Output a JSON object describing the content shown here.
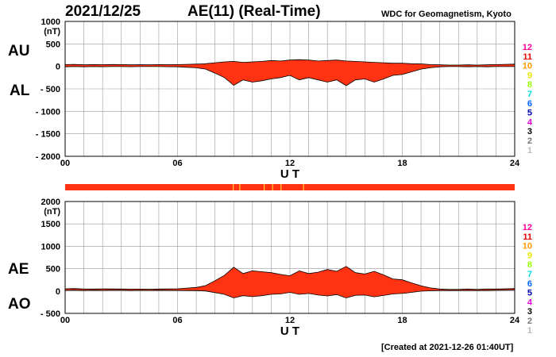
{
  "header": {
    "date": "2021/12/25",
    "title": "AE(11) (Real-Time)",
    "credit": "WDC for Geomagnetism, Kyoto"
  },
  "footer": {
    "created": "[Created at 2021-12-26 01:40UT]"
  },
  "legend": {
    "items": [
      {
        "label": "12",
        "color": "#ff0099"
      },
      {
        "label": "11",
        "color": "#e60000"
      },
      {
        "label": "10",
        "color": "#ff9900"
      },
      {
        "label": "9",
        "color": "#e6e600"
      },
      {
        "label": "8",
        "color": "#99ff00"
      },
      {
        "label": "7",
        "color": "#00dddd"
      },
      {
        "label": "6",
        "color": "#0066ff"
      },
      {
        "label": "5",
        "color": "#0000aa"
      },
      {
        "label": "4",
        "color": "#dd00dd"
      },
      {
        "label": "3",
        "color": "#000000"
      },
      {
        "label": "2",
        "color": "#777777"
      },
      {
        "label": "1",
        "color": "#bbbbbb"
      }
    ]
  },
  "colors": {
    "fill": "#ff3311",
    "outline": "#000000",
    "highlight": "#ffcc33",
    "grid": "#999999"
  },
  "chart_data": [
    {
      "id": "au-al",
      "type": "area",
      "labels": [
        "AU",
        "AL"
      ],
      "unit": "(nT)",
      "xlabel": "U T",
      "xlim": [
        0,
        24
      ],
      "x_ticks": [
        0,
        6,
        12,
        18,
        24
      ],
      "x_tick_labels": [
        "00",
        "06",
        "12",
        "18",
        "24"
      ],
      "ylim": [
        -2000,
        1000
      ],
      "y_ticks": [
        1000,
        500,
        0,
        -500,
        -1000,
        -1500,
        -2000
      ],
      "y_tick_labels": [
        "1000",
        "500",
        "0",
        "- 500",
        "- 1000",
        "- 1500",
        "- 2000"
      ],
      "x": [
        0,
        0.5,
        1,
        1.5,
        2,
        2.5,
        3,
        3.5,
        4,
        4.5,
        5,
        5.5,
        6,
        6.5,
        7,
        7.5,
        8,
        8.5,
        9,
        9.5,
        10,
        10.5,
        11,
        11.5,
        12,
        12.5,
        13,
        13.5,
        14,
        14.5,
        15,
        15.5,
        16,
        16.5,
        17,
        17.5,
        18,
        18.5,
        19,
        19.5,
        20,
        20.5,
        21,
        21.5,
        22,
        22.5,
        23,
        23.5,
        24
      ],
      "series": [
        {
          "name": "AU",
          "values": [
            40,
            45,
            35,
            40,
            38,
            42,
            40,
            35,
            38,
            36,
            40,
            38,
            40,
            45,
            50,
            60,
            80,
            100,
            110,
            90,
            100,
            110,
            130,
            120,
            140,
            150,
            140,
            120,
            130,
            140,
            120,
            110,
            100,
            90,
            80,
            70,
            70,
            60,
            55,
            40,
            35,
            30,
            30,
            35,
            30,
            35,
            40,
            45,
            50
          ]
        },
        {
          "name": "AL",
          "values": [
            -10,
            -5,
            -10,
            -5,
            -8,
            -5,
            -5,
            -8,
            -5,
            -5,
            -5,
            -8,
            -10,
            -20,
            -30,
            -60,
            -150,
            -250,
            -420,
            -300,
            -350,
            -320,
            -280,
            -250,
            -200,
            -300,
            -250,
            -300,
            -350,
            -300,
            -430,
            -300,
            -280,
            -350,
            -280,
            -200,
            -180,
            -120,
            -60,
            -30,
            -10,
            -5,
            -5,
            -10,
            -5,
            -10,
            -5,
            -5,
            -5
          ]
        }
      ]
    },
    {
      "id": "ae-ao",
      "type": "area",
      "labels": [
        "AE",
        "AO"
      ],
      "unit": "(nT)",
      "xlabel": "U T",
      "xlim": [
        0,
        24
      ],
      "x_ticks": [
        0,
        6,
        12,
        18,
        24
      ],
      "x_tick_labels": [
        "00",
        "06",
        "12",
        "18",
        "24"
      ],
      "ylim": [
        -500,
        2000
      ],
      "y_ticks": [
        2000,
        1500,
        1000,
        500,
        0,
        -500
      ],
      "y_tick_labels": [
        "2000",
        "1500",
        "1000",
        "500",
        "0",
        "- 500"
      ],
      "x": [
        0,
        0.5,
        1,
        1.5,
        2,
        2.5,
        3,
        3.5,
        4,
        4.5,
        5,
        5.5,
        6,
        6.5,
        7,
        7.5,
        8,
        8.5,
        9,
        9.5,
        10,
        10.5,
        11,
        11.5,
        12,
        12.5,
        13,
        13.5,
        14,
        14.5,
        15,
        15.5,
        16,
        16.5,
        17,
        17.5,
        18,
        18.5,
        19,
        19.5,
        20,
        20.5,
        21,
        21.5,
        22,
        22.5,
        23,
        23.5,
        24
      ],
      "series": [
        {
          "name": "AE",
          "values": [
            50,
            55,
            45,
            45,
            46,
            47,
            45,
            43,
            43,
            41,
            45,
            46,
            50,
            65,
            80,
            120,
            230,
            350,
            530,
            390,
            450,
            430,
            410,
            370,
            340,
            450,
            390,
            420,
            480,
            440,
            550,
            410,
            380,
            440,
            360,
            270,
            250,
            180,
            115,
            70,
            45,
            35,
            35,
            45,
            35,
            45,
            45,
            50,
            55
          ]
        },
        {
          "name": "AO",
          "values": [
            15,
            20,
            12,
            17,
            15,
            18,
            17,
            13,
            16,
            15,
            17,
            15,
            15,
            12,
            10,
            0,
            -35,
            -75,
            -155,
            -105,
            -125,
            -105,
            -75,
            -65,
            -30,
            -75,
            -55,
            -90,
            -110,
            -80,
            -155,
            -95,
            -90,
            -130,
            -100,
            -65,
            -55,
            -30,
            -3,
            5,
            12,
            12,
            12,
            12,
            12,
            12,
            17,
            20,
            22
          ]
        }
      ]
    }
  ]
}
